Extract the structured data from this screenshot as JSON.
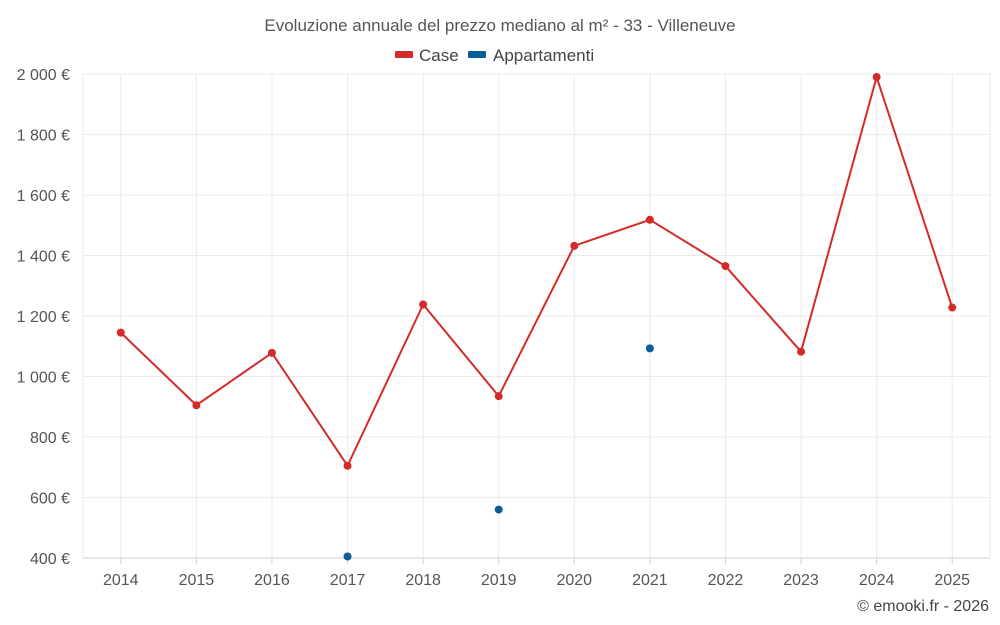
{
  "chart_data": {
    "type": "line",
    "title": "Evoluzione annuale del prezzo mediano al m² - 33 - Villeneuve",
    "categories": [
      "2014",
      "2015",
      "2016",
      "2017",
      "2018",
      "2019",
      "2020",
      "2021",
      "2022",
      "2023",
      "2024",
      "2025"
    ],
    "series": [
      {
        "name": "Case",
        "color": "#d42a2a",
        "mode": "line+markers",
        "values": [
          1145,
          905,
          1078,
          705,
          1238,
          935,
          1432,
          1518,
          1365,
          1082,
          1990,
          1228
        ]
      },
      {
        "name": "Appartamenti",
        "color": "#0b5f99",
        "mode": "markers",
        "values": [
          null,
          null,
          null,
          405,
          null,
          560,
          null,
          1093,
          null,
          null,
          null,
          null
        ]
      }
    ],
    "ylim": [
      400,
      2000
    ],
    "yticks": [
      400,
      600,
      800,
      1000,
      1200,
      1400,
      1600,
      1800,
      2000
    ],
    "ytick_labels": [
      "400 €",
      "600 €",
      "800 €",
      "1 000 €",
      "1 200 €",
      "1 400 €",
      "1 600 €",
      "1 800 €",
      "2 000 €"
    ],
    "xlabel": "",
    "ylabel": "",
    "grid": true,
    "legend_position": "top-center"
  },
  "credit": "© emooki.fr - 2026"
}
